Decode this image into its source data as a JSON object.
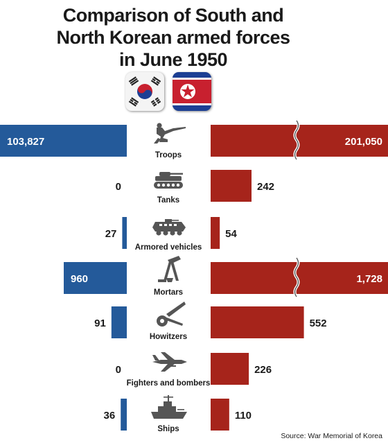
{
  "title_lines": [
    "Comparison of South and",
    "North Korean armed forces",
    "in June 1950"
  ],
  "source": "Source: War Memorial of Korea",
  "colors": {
    "south": "#245a9a",
    "north": "#a6241b",
    "text": "#1a1a1a"
  },
  "flags": [
    {
      "country": "South Korea",
      "icon": "south-korea-flag-icon"
    },
    {
      "country": "North Korea",
      "icon": "north-korea-flag-icon"
    }
  ],
  "chart_data": {
    "type": "bar",
    "orientation": "horizontal-butterfly",
    "categories": [
      "Troops",
      "Tanks",
      "Armored vehicles",
      "Mortars",
      "Howitzers",
      "Fighters and bombers",
      "Ships"
    ],
    "series": [
      {
        "country": "South Korea",
        "values": [
          103827,
          0,
          27,
          960,
          91,
          0,
          36
        ],
        "labels": [
          "103,827",
          "0",
          "27",
          "960",
          "91",
          "0",
          "36"
        ]
      },
      {
        "country": "North Korea",
        "values": [
          201050,
          242,
          54,
          1728,
          552,
          226,
          110
        ],
        "labels": [
          "201,050",
          "242",
          "54",
          "1,728",
          "552",
          "226",
          "110"
        ]
      }
    ],
    "axis_breaks": [
      "Troops",
      "Mortars"
    ],
    "icons": [
      "soldier-icon",
      "tank-icon",
      "armored-vehicle-icon",
      "mortar-icon",
      "howitzer-icon",
      "fighter-jet-icon",
      "ship-icon"
    ]
  }
}
